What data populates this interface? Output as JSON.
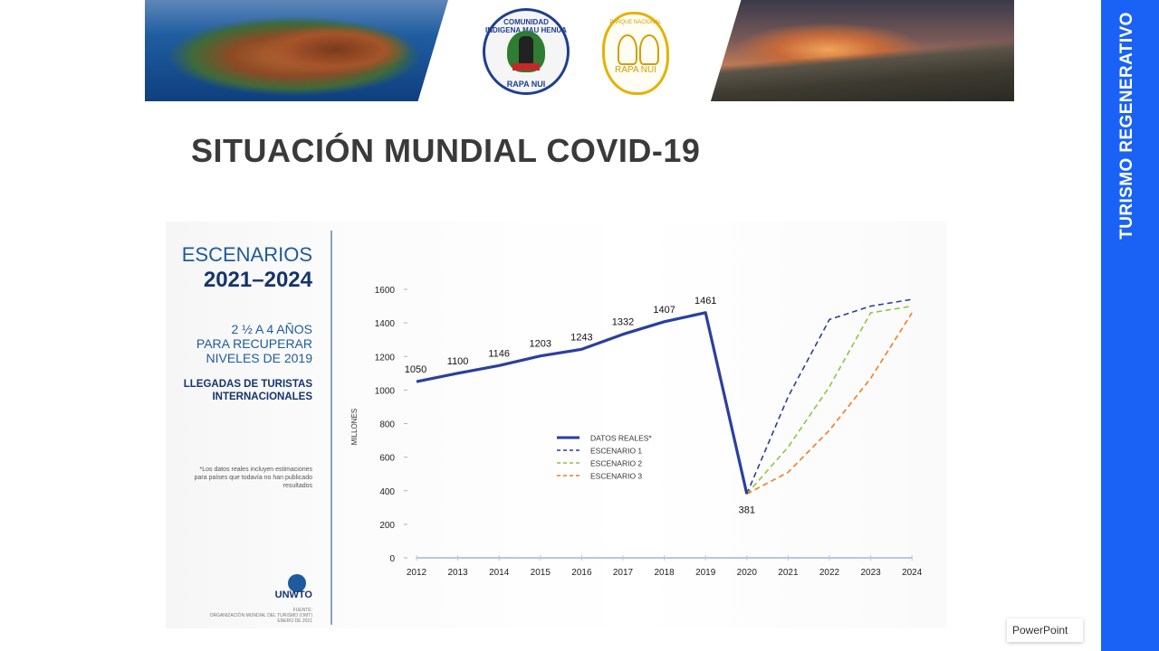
{
  "slide": {
    "title": "SITUACIÓN MUNDIAL COVID-19",
    "side_label": "TURISMO REGENERATIVO",
    "app_tag": "PowerPoint",
    "accent_color": "#1a62f5"
  },
  "banner": {
    "logo1_top": "COMUNIDAD INDIGENA MAU HENUA",
    "logo1_bottom": "RAPA NUI",
    "logo2_top": "PARQUE NACIONAL",
    "logo2_bottom": "RAPA NUI"
  },
  "infographic": {
    "scenarios_title": "ESCENARIOS",
    "scenarios_years": "2021–2024",
    "recovery_line1": "2 ½ A 4 AÑOS",
    "recovery_line2": "PARA RECUPERAR",
    "recovery_line3": "NIVELES DE 2019",
    "arrivals_line1": "LLEGADAS DE TURISTAS",
    "arrivals_line2": "INTERNACIONALES",
    "footnote_line1": "*Los datos reales incluyen estimaciones",
    "footnote_line2": "para países que todavía no han publicado",
    "footnote_line3": "resultados",
    "logo_text": "UNWTO",
    "source_line1": "FUENTE:",
    "source_line2": "ORGANIZACIÓN MUNDIAL DEL TURISMO (OMT)",
    "source_line3": "ENERO DE 2021"
  },
  "chart_data": {
    "type": "line",
    "ylabel": "MILLONES",
    "xlabel": "",
    "ylim": [
      0,
      1600
    ],
    "yticks": [
      0,
      200,
      400,
      600,
      800,
      1000,
      1200,
      1400,
      1600
    ],
    "categories": [
      "2012",
      "2013",
      "2014",
      "2015",
      "2016",
      "2017",
      "2018",
      "2019",
      "2020",
      "2021",
      "2022",
      "2023",
      "2024"
    ],
    "legend_position": "center",
    "series": [
      {
        "name": "DATOS REALES*",
        "style": "solid",
        "color": "#2a3f9e",
        "x": [
          "2012",
          "2013",
          "2014",
          "2015",
          "2016",
          "2017",
          "2018",
          "2019",
          "2020"
        ],
        "values": [
          1050,
          1100,
          1146,
          1203,
          1243,
          1332,
          1407,
          1461,
          381
        ],
        "labels": [
          "1050",
          "1100",
          "1146",
          "1203",
          "1243",
          "1332",
          "1407",
          "1461",
          "381"
        ]
      },
      {
        "name": "ESCENARIO 1",
        "style": "dashed",
        "color": "#2a3f9e",
        "x": [
          "2020",
          "2021",
          "2022",
          "2023",
          "2024"
        ],
        "values": [
          381,
          960,
          1420,
          1500,
          1540
        ]
      },
      {
        "name": "ESCENARIO 2",
        "style": "dashed",
        "color": "#8cc63f",
        "x": [
          "2020",
          "2021",
          "2022",
          "2023",
          "2024"
        ],
        "values": [
          381,
          660,
          1020,
          1460,
          1500
        ]
      },
      {
        "name": "ESCENARIO 3",
        "style": "dashed",
        "color": "#f47b20",
        "x": [
          "2020",
          "2021",
          "2022",
          "2023",
          "2024"
        ],
        "values": [
          381,
          510,
          760,
          1070,
          1460
        ]
      }
    ]
  }
}
